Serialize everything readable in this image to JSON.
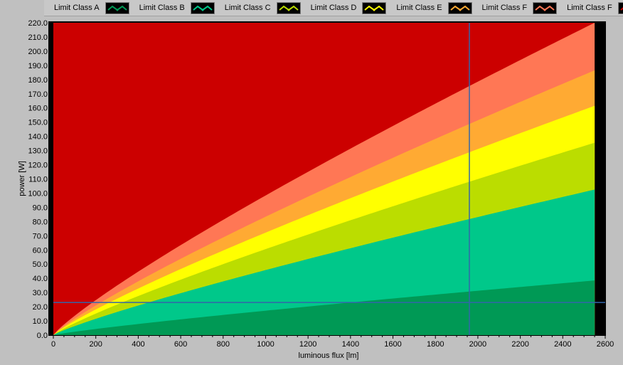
{
  "chart_data": {
    "type": "area",
    "title": "",
    "xlabel": "luminous flux [lm]",
    "ylabel": "power [W]",
    "xlim": [
      0,
      2600
    ],
    "ylim": [
      0,
      220
    ],
    "x_ticks": [
      0,
      200,
      400,
      600,
      800,
      1000,
      1200,
      1400,
      1600,
      1800,
      2000,
      2200,
      2400,
      2600
    ],
    "y_ticks": [
      0,
      10,
      20,
      30,
      40,
      50,
      60,
      70,
      80,
      90,
      100,
      110,
      120,
      130,
      140,
      150,
      160,
      170,
      180,
      190,
      200,
      210,
      220
    ],
    "y_tick_decimals": 1,
    "x_range": [
      0,
      2550
    ],
    "background_color": "#cc0000",
    "plot_frame_color": "#000000",
    "curve_exponent": 0.86,
    "series": [
      {
        "name": "Limit Class A",
        "color": "#009955",
        "value_at_max": 38.5
      },
      {
        "name": "Limit Class B",
        "color": "#00c88a",
        "value_at_max": 102.5
      },
      {
        "name": "Limit Class C",
        "color": "#bbdd00",
        "value_at_max": 135.5
      },
      {
        "name": "Limit Class D",
        "color": "#ffff00",
        "value_at_max": 161.5
      },
      {
        "name": "Limit Class E",
        "color": "#ffaa33",
        "value_at_max": 186.5
      },
      {
        "name": "Limit Class F",
        "color": "#ff7755",
        "value_at_max": 220.0
      },
      {
        "name": "Limit Class F",
        "color": "#cc0000",
        "value_at_max": 220.0
      }
    ],
    "cursors": {
      "color": "#3366aa",
      "x": 1960,
      "y": 23
    },
    "grid": false,
    "legend_position": "top"
  }
}
